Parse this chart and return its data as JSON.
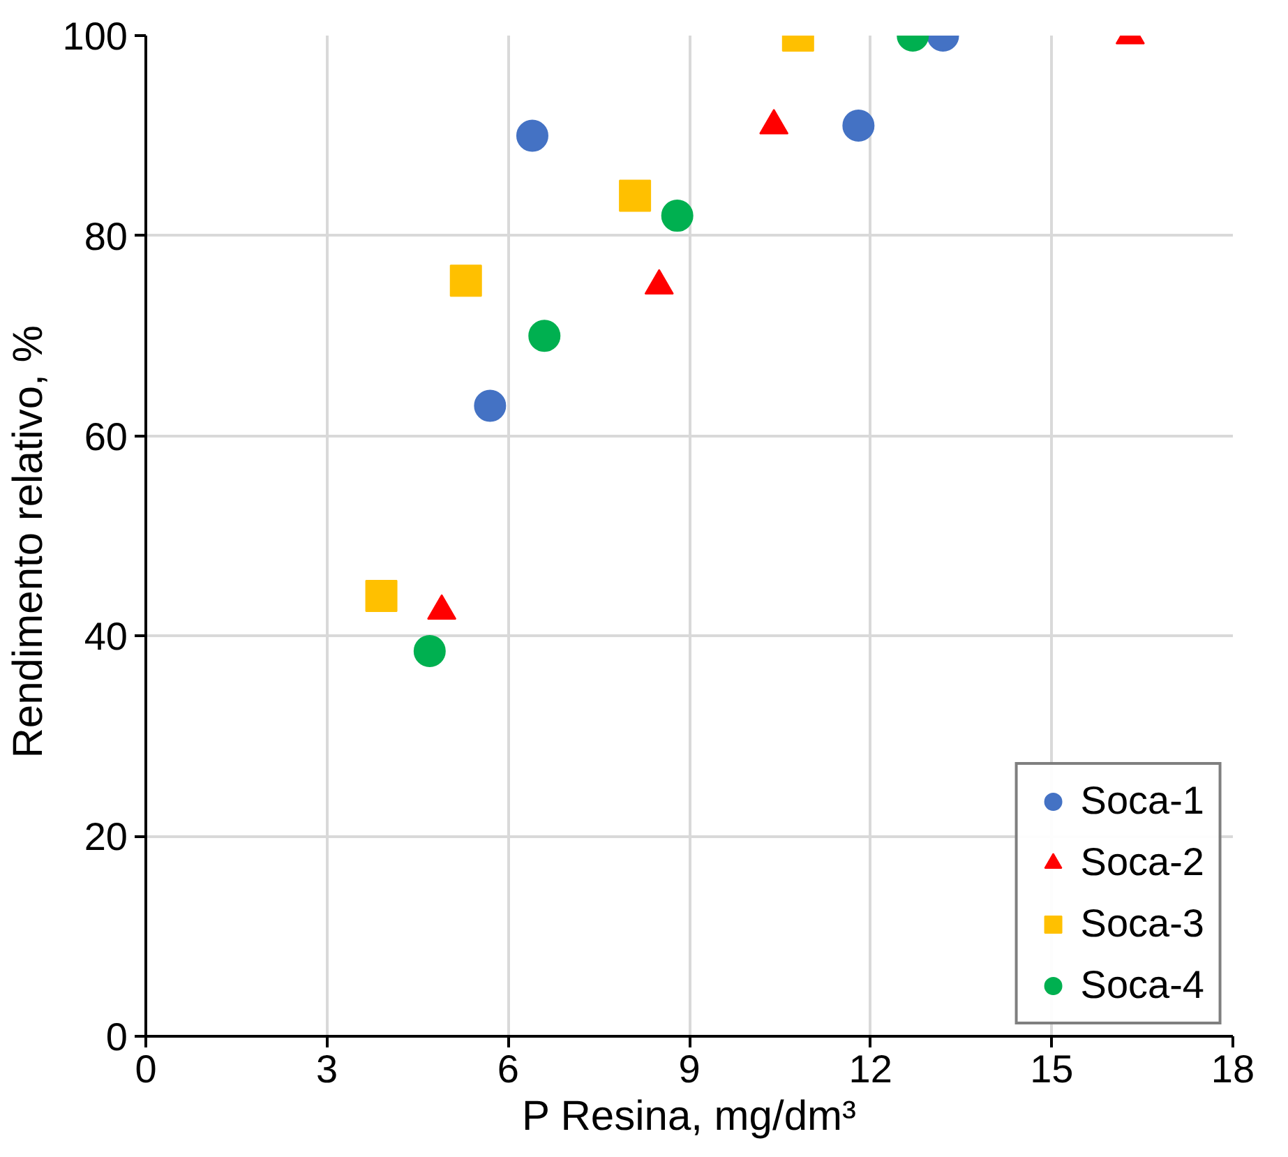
{
  "chart_data": {
    "type": "scatter",
    "xlabel": "P Resina, mg/dm³",
    "ylabel": "Rendimento relativo,  %",
    "xlim": [
      0,
      18
    ],
    "xticks": [
      0,
      3,
      6,
      9,
      12,
      15,
      18
    ],
    "ylim": [
      0,
      100
    ],
    "yticks": [
      0,
      20,
      40,
      60,
      80,
      100
    ],
    "grid": true,
    "legend": "bottom right",
    "series": [
      {
        "name": "Soca-1",
        "color": "#4472c4",
        "marker": "circle",
        "x": [
          6.4,
          5.7,
          11.8,
          13.2
        ],
        "values": [
          90,
          63,
          91,
          100
        ]
      },
      {
        "name": "Soca-2",
        "color": "#ff0000",
        "marker": "triangle",
        "x": [
          4.9,
          8.5,
          10.4,
          16.3
        ],
        "values": [
          42.5,
          75,
          91,
          100
        ]
      },
      {
        "name": "Soca-3",
        "color": "#ffc000",
        "marker": "square",
        "x": [
          3.9,
          5.3,
          8.1,
          10.8
        ],
        "values": [
          44,
          75.5,
          84,
          100
        ]
      },
      {
        "name": "Soca-4",
        "color": "#00b050",
        "marker": "circle",
        "x": [
          4.7,
          6.6,
          8.8,
          12.7
        ],
        "values": [
          38.5,
          70,
          82,
          100
        ]
      }
    ]
  }
}
